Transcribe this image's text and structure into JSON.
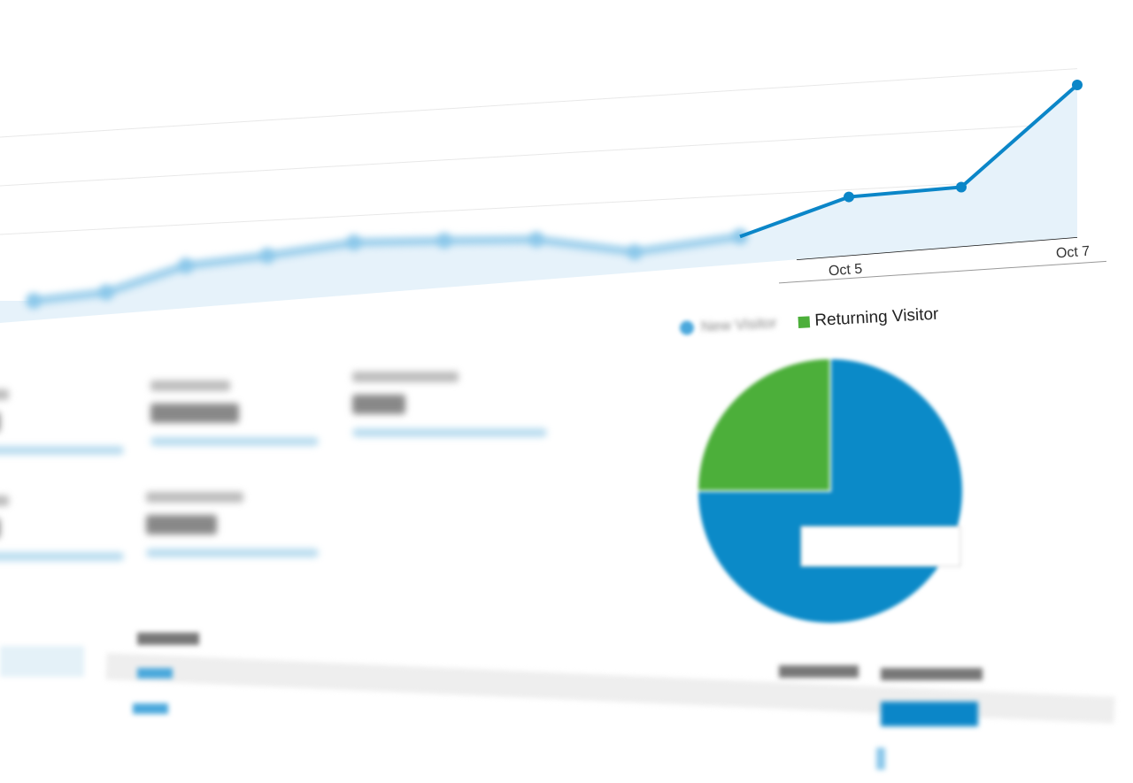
{
  "chart_data": [
    {
      "type": "area",
      "x_tick_labels": [
        "",
        "",
        "",
        "",
        "",
        "",
        "",
        "",
        "",
        "Oct 5",
        "",
        "Oct 7"
      ],
      "values": [
        22,
        25,
        48,
        52,
        59,
        53,
        46,
        23,
        31,
        66,
        67,
        172
      ],
      "color": "#0b86c8",
      "fill": "#e6f2fa",
      "grid": true
    },
    {
      "type": "pie",
      "legend": [
        "New Visitor",
        "Returning Visitor"
      ],
      "values": [
        75,
        25
      ],
      "colors": [
        "#0b8ac8",
        "#4caf3a"
      ],
      "legend_placement": "top"
    }
  ]
}
